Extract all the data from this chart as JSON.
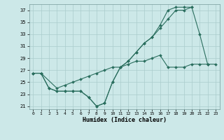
{
  "xlabel": "Humidex (Indice chaleur)",
  "bg_color": "#cce8e8",
  "grid_color": "#aacccc",
  "line_color": "#2a6e5e",
  "xlim": [
    -0.5,
    23.5
  ],
  "ylim": [
    20.5,
    38.0
  ],
  "xticks": [
    0,
    1,
    2,
    3,
    4,
    5,
    6,
    7,
    8,
    9,
    10,
    11,
    12,
    13,
    14,
    15,
    16,
    17,
    18,
    19,
    20,
    21,
    22,
    23
  ],
  "yticks": [
    21,
    23,
    25,
    27,
    29,
    31,
    33,
    35,
    37
  ],
  "curve1_x": [
    0,
    1,
    2,
    3,
    4,
    5,
    6,
    7,
    8,
    9,
    10,
    11,
    12,
    13,
    14,
    15,
    16,
    17,
    18,
    19,
    20,
    21,
    22
  ],
  "curve1_y": [
    26.5,
    26.5,
    24.0,
    23.5,
    23.5,
    23.5,
    23.5,
    22.5,
    21.0,
    21.5,
    25.0,
    27.5,
    28.5,
    30.0,
    31.5,
    32.5,
    34.0,
    35.5,
    37.0,
    37.0,
    37.5,
    33.0,
    28.0
  ],
  "curve2_x": [
    0,
    1,
    2,
    3,
    4,
    5,
    6,
    7,
    8,
    9,
    10,
    11,
    12,
    13,
    14,
    15,
    16,
    17,
    18,
    19,
    20
  ],
  "curve2_y": [
    26.5,
    26.5,
    24.0,
    23.5,
    23.5,
    23.5,
    23.5,
    22.5,
    21.0,
    21.5,
    25.0,
    27.5,
    28.5,
    30.0,
    31.5,
    32.5,
    34.5,
    37.0,
    37.5,
    37.5,
    37.5
  ],
  "curve3_x": [
    0,
    1,
    3,
    4,
    5,
    6,
    7,
    8,
    9,
    10,
    11,
    12,
    13,
    14,
    15,
    16,
    17,
    18,
    19,
    20,
    21,
    22,
    23
  ],
  "curve3_y": [
    26.5,
    26.5,
    24.0,
    24.5,
    25.0,
    25.5,
    26.0,
    26.5,
    27.0,
    27.5,
    27.5,
    28.0,
    28.5,
    28.5,
    29.0,
    29.5,
    27.5,
    27.5,
    27.5,
    28.0,
    28.0,
    28.0,
    28.0
  ]
}
